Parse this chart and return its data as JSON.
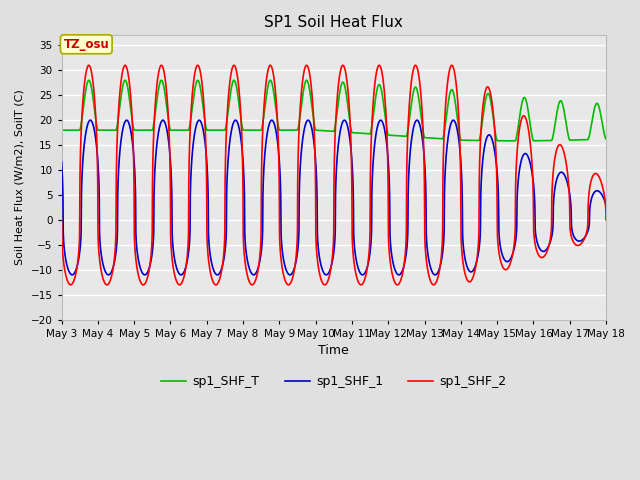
{
  "title": "SP1 Soil Heat Flux",
  "xlabel": "Time",
  "ylabel": "Soil Heat Flux (W/m2), SoilT (C)",
  "ylim": [
    -20,
    37
  ],
  "yticks": [
    -20,
    -15,
    -10,
    -5,
    0,
    5,
    10,
    15,
    20,
    25,
    30,
    35
  ],
  "bg_color": "#e0e0e0",
  "plot_bg_color": "#e8e8e8",
  "line_colors": {
    "sp1_SHF_2": "#ff0000",
    "sp1_SHF_1": "#0000cc",
    "sp1_SHF_T": "#00bb00"
  },
  "line_widths": {
    "sp1_SHF_2": 1.2,
    "sp1_SHF_1": 1.2,
    "sp1_SHF_T": 1.2
  },
  "tz_label": "TZ_osu",
  "tz_box_color": "#ffffcc",
  "tz_text_color": "#cc0000",
  "x_start_day": 3,
  "x_end_day": 18,
  "num_points": 4320,
  "xtick_labels": [
    "May 3",
    "May 4",
    "May 5",
    "May 6",
    "May 7",
    "May 8",
    "May 9",
    "May 10",
    "May 11",
    "May 12",
    "May 13",
    "May 14",
    "May 15",
    "May 16",
    "May 17",
    "May 18"
  ],
  "xtick_positions": [
    3,
    4,
    5,
    6,
    7,
    8,
    9,
    10,
    11,
    12,
    13,
    14,
    15,
    16,
    17,
    18
  ]
}
